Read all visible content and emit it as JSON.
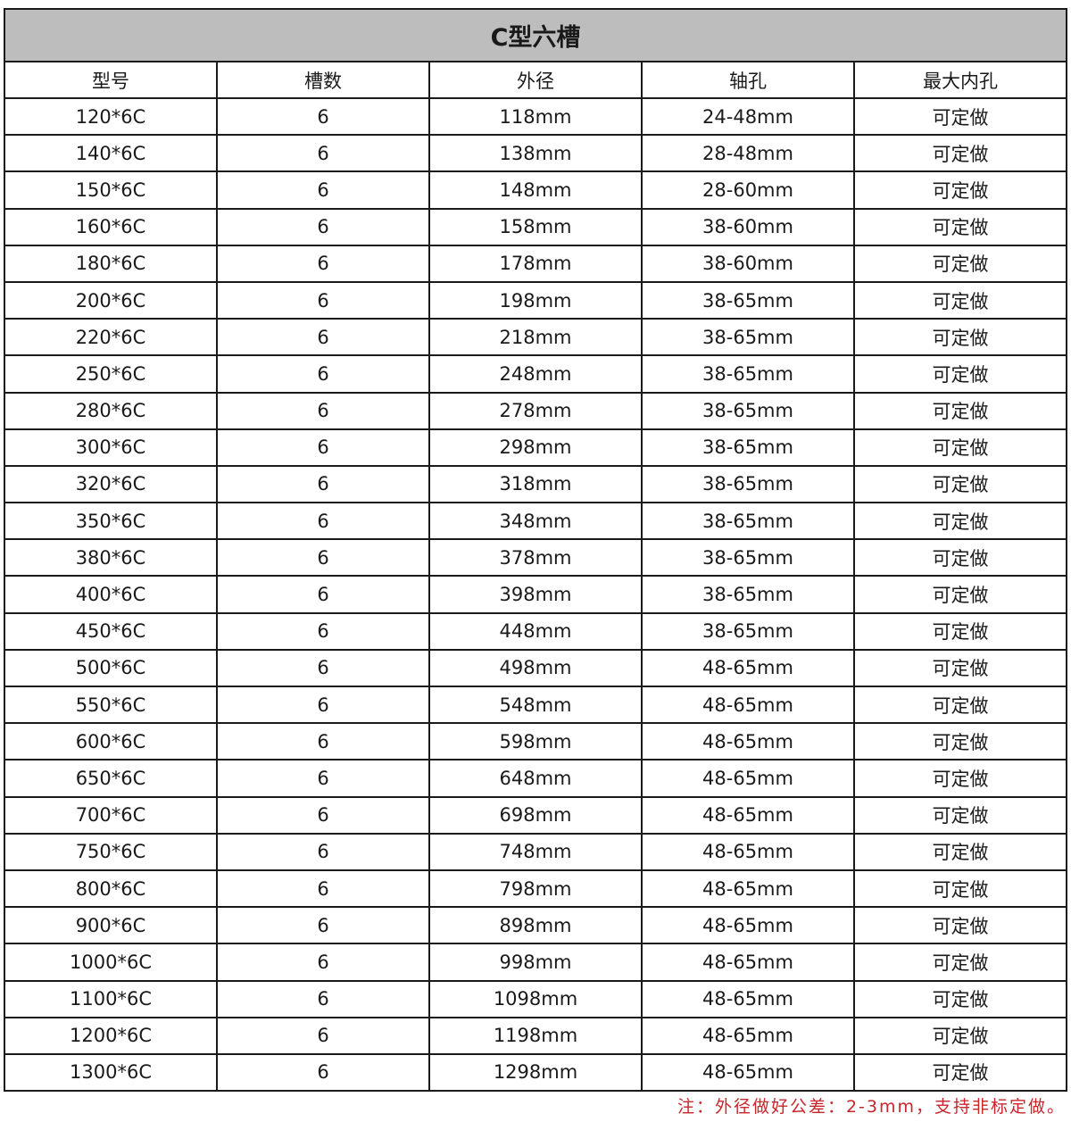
{
  "title": "C型六槽",
  "headers": [
    "型号",
    "槽数",
    "外径",
    "轴孔",
    "最大内孔"
  ],
  "rows": [
    [
      "120*6C",
      "6",
      "118mm",
      "24-48mm",
      "可定做"
    ],
    [
      "140*6C",
      "6",
      "138mm",
      "28-48mm",
      "可定做"
    ],
    [
      "150*6C",
      "6",
      "148mm",
      "28-60mm",
      "可定做"
    ],
    [
      "160*6C",
      "6",
      "158mm",
      "38-60mm",
      "可定做"
    ],
    [
      "180*6C",
      "6",
      "178mm",
      "38-60mm",
      "可定做"
    ],
    [
      "200*6C",
      "6",
      "198mm",
      "38-65mm",
      "可定做"
    ],
    [
      "220*6C",
      "6",
      "218mm",
      "38-65mm",
      "可定做"
    ],
    [
      "250*6C",
      "6",
      "248mm",
      "38-65mm",
      "可定做"
    ],
    [
      "280*6C",
      "6",
      "278mm",
      "38-65mm",
      "可定做"
    ],
    [
      "300*6C",
      "6",
      "298mm",
      "38-65mm",
      "可定做"
    ],
    [
      "320*6C",
      "6",
      "318mm",
      "38-65mm",
      "可定做"
    ],
    [
      "350*6C",
      "6",
      "348mm",
      "38-65mm",
      "可定做"
    ],
    [
      "380*6C",
      "6",
      "378mm",
      "38-65mm",
      "可定做"
    ],
    [
      "400*6C",
      "6",
      "398mm",
      "38-65mm",
      "可定做"
    ],
    [
      "450*6C",
      "6",
      "448mm",
      "38-65mm",
      "可定做"
    ],
    [
      "500*6C",
      "6",
      "498mm",
      "48-65mm",
      "可定做"
    ],
    [
      "550*6C",
      "6",
      "548mm",
      "48-65mm",
      "可定做"
    ],
    [
      "600*6C",
      "6",
      "598mm",
      "48-65mm",
      "可定做"
    ],
    [
      "650*6C",
      "6",
      "648mm",
      "48-65mm",
      "可定做"
    ],
    [
      "700*6C",
      "6",
      "698mm",
      "48-65mm",
      "可定做"
    ],
    [
      "750*6C",
      "6",
      "748mm",
      "48-65mm",
      "可定做"
    ],
    [
      "800*6C",
      "6",
      "798mm",
      "48-65mm",
      "可定做"
    ],
    [
      "900*6C",
      "6",
      "898mm",
      "48-65mm",
      "可定做"
    ],
    [
      "1000*6C",
      "6",
      "998mm",
      "48-65mm",
      "可定做"
    ],
    [
      "1100*6C",
      "6",
      "1098mm",
      "48-65mm",
      "可定做"
    ],
    [
      "1200*6C",
      "6",
      "1198mm",
      "48-65mm",
      "可定做"
    ],
    [
      "1300*6C",
      "6",
      "1298mm",
      "48-65mm",
      "可定做"
    ]
  ],
  "note": "注：外径做好公差：2-3mm，支持非标定做。",
  "colors": {
    "title_bg": "#bdbdbd",
    "note": "#c8262b"
  }
}
